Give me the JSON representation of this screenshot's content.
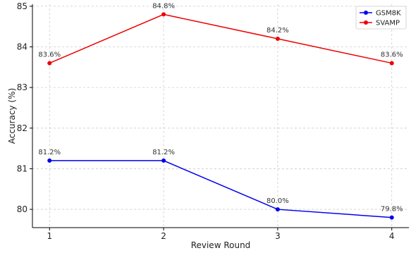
{
  "chart_data": {
    "type": "line",
    "title": "",
    "xlabel": "Review Round",
    "ylabel": "Accuracy (%)",
    "x": [
      1,
      2,
      3,
      4
    ],
    "xticks": [
      "1",
      "2",
      "3",
      "4"
    ],
    "yticks": [
      "80",
      "81",
      "82",
      "83",
      "84",
      "85"
    ],
    "xlim": [
      0.85,
      4.15
    ],
    "ylim": [
      79.55,
      85.05
    ],
    "grid": true,
    "legend_position": "top-right",
    "series": [
      {
        "name": "GSM8K",
        "color": "#0000ee",
        "values": [
          81.2,
          81.2,
          80.0,
          79.8
        ],
        "labels": [
          "81.2%",
          "81.2%",
          "80.0%",
          "79.8%"
        ]
      },
      {
        "name": "SVAMP",
        "color": "#ee0000",
        "values": [
          83.6,
          84.8,
          84.2,
          83.6
        ],
        "labels": [
          "83.6%",
          "84.8%",
          "84.2%",
          "83.6%"
        ]
      }
    ]
  }
}
